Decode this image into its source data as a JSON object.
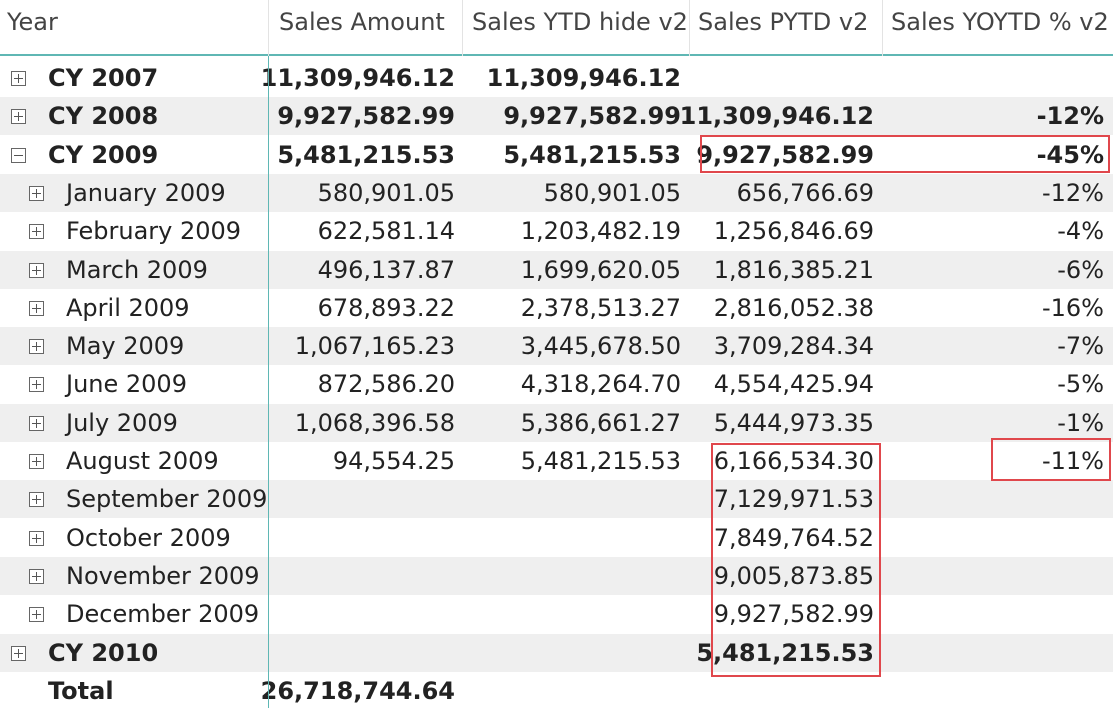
{
  "headers": [
    "Year",
    "Sales Amount",
    "Sales YTD hide v2",
    "Sales PYTD v2",
    "Sales YOYTD % v2"
  ],
  "rows": [
    {
      "label": "CY 2007",
      "level": 0,
      "toggle": "plus",
      "bold": true,
      "sales_amount": "11,309,946.12",
      "sales_ytd": "11,309,946.12",
      "sales_pytd": "",
      "yoytd": ""
    },
    {
      "label": "CY 2008",
      "level": 0,
      "toggle": "plus",
      "bold": true,
      "sales_amount": "9,927,582.99",
      "sales_ytd": "9,927,582.99",
      "sales_pytd": "11,309,946.12",
      "yoytd": "-12%"
    },
    {
      "label": "CY 2009",
      "level": 0,
      "toggle": "minus",
      "bold": true,
      "sales_amount": "5,481,215.53",
      "sales_ytd": "5,481,215.53",
      "sales_pytd": "9,927,582.99",
      "yoytd": "-45%"
    },
    {
      "label": "January 2009",
      "level": 1,
      "toggle": "plus",
      "bold": false,
      "sales_amount": "580,901.05",
      "sales_ytd": "580,901.05",
      "sales_pytd": "656,766.69",
      "yoytd": "-12%"
    },
    {
      "label": "February 2009",
      "level": 1,
      "toggle": "plus",
      "bold": false,
      "sales_amount": "622,581.14",
      "sales_ytd": "1,203,482.19",
      "sales_pytd": "1,256,846.69",
      "yoytd": "-4%"
    },
    {
      "label": "March 2009",
      "level": 1,
      "toggle": "plus",
      "bold": false,
      "sales_amount": "496,137.87",
      "sales_ytd": "1,699,620.05",
      "sales_pytd": "1,816,385.21",
      "yoytd": "-6%"
    },
    {
      "label": "April 2009",
      "level": 1,
      "toggle": "plus",
      "bold": false,
      "sales_amount": "678,893.22",
      "sales_ytd": "2,378,513.27",
      "sales_pytd": "2,816,052.38",
      "yoytd": "-16%"
    },
    {
      "label": "May 2009",
      "level": 1,
      "toggle": "plus",
      "bold": false,
      "sales_amount": "1,067,165.23",
      "sales_ytd": "3,445,678.50",
      "sales_pytd": "3,709,284.34",
      "yoytd": "-7%"
    },
    {
      "label": "June 2009",
      "level": 1,
      "toggle": "plus",
      "bold": false,
      "sales_amount": "872,586.20",
      "sales_ytd": "4,318,264.70",
      "sales_pytd": "4,554,425.94",
      "yoytd": "-5%"
    },
    {
      "label": "July 2009",
      "level": 1,
      "toggle": "plus",
      "bold": false,
      "sales_amount": "1,068,396.58",
      "sales_ytd": "5,386,661.27",
      "sales_pytd": "5,444,973.35",
      "yoytd": "-1%"
    },
    {
      "label": "August 2009",
      "level": 1,
      "toggle": "plus",
      "bold": false,
      "sales_amount": "94,554.25",
      "sales_ytd": "5,481,215.53",
      "sales_pytd": "6,166,534.30",
      "yoytd": "-11%"
    },
    {
      "label": "September 2009",
      "level": 1,
      "toggle": "plus",
      "bold": false,
      "sales_amount": "",
      "sales_ytd": "",
      "sales_pytd": "7,129,971.53",
      "yoytd": ""
    },
    {
      "label": "October 2009",
      "level": 1,
      "toggle": "plus",
      "bold": false,
      "sales_amount": "",
      "sales_ytd": "",
      "sales_pytd": "7,849,764.52",
      "yoytd": ""
    },
    {
      "label": "November 2009",
      "level": 1,
      "toggle": "plus",
      "bold": false,
      "sales_amount": "",
      "sales_ytd": "",
      "sales_pytd": "9,005,873.85",
      "yoytd": ""
    },
    {
      "label": "December 2009",
      "level": 1,
      "toggle": "plus",
      "bold": false,
      "sales_amount": "",
      "sales_ytd": "",
      "sales_pytd": "9,927,582.99",
      "yoytd": ""
    },
    {
      "label": "CY 2010",
      "level": 0,
      "toggle": "plus",
      "bold": true,
      "sales_amount": "",
      "sales_ytd": "",
      "sales_pytd": "5,481,215.53",
      "yoytd": ""
    }
  ],
  "total": {
    "label": "Total",
    "sales_amount": "26,718,744.64",
    "sales_ytd": "",
    "sales_pytd": "",
    "yoytd": ""
  },
  "colors": {
    "accent": "#5fb7b4",
    "band": "#efefef",
    "highlight": "#e0474c"
  }
}
